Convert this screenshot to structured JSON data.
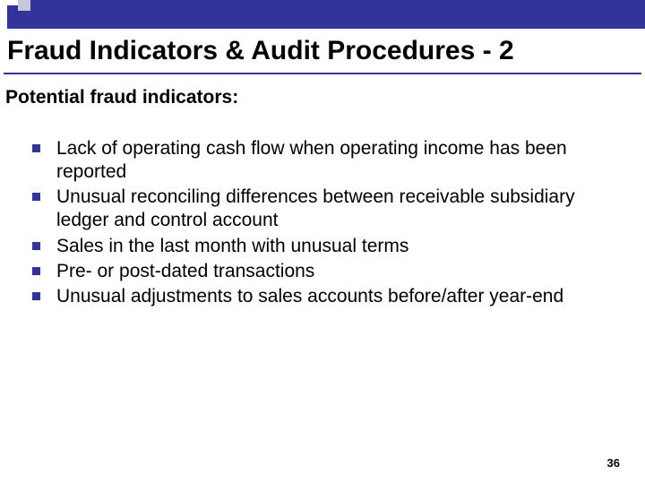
{
  "colors": {
    "brand": "#333399",
    "background": "#ffffff",
    "text": "#000000",
    "accent_light": "#c8c8d8"
  },
  "header": {
    "title": "Fraud Indicators & Audit Procedures - 2"
  },
  "subtitle": "Potential fraud indicators:",
  "bullets": [
    "Lack of operating cash flow when operating income has been reported",
    "Unusual reconciling differences between receivable subsidiary ledger and control account",
    "Sales in the last month with unusual terms",
    "Pre- or post-dated transactions",
    "Unusual adjustments to sales accounts before/after year-end"
  ],
  "page_number": "36",
  "typography": {
    "title_fontsize": 30,
    "subtitle_fontsize": 21,
    "body_fontsize": 21,
    "page_number_fontsize": 13,
    "font_family": "Arial"
  }
}
